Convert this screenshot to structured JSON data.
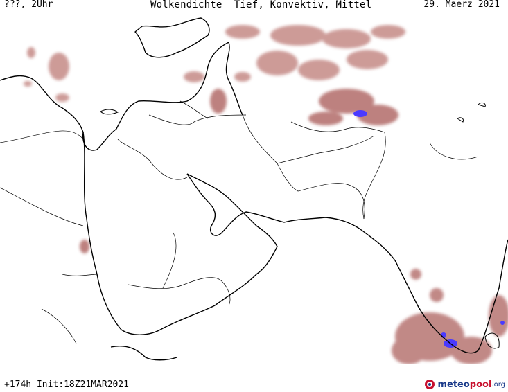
{
  "header": {
    "left": "???, 2Uhr",
    "title": "Wolkendichte  Tief, Konvektiv, Mittel",
    "date": "29. Maerz 2021"
  },
  "footer": {
    "run": "+174h Init:18Z21MAR2021"
  },
  "brand": {
    "part1": "meteo",
    "part2": "pool",
    "part3": ".org"
  },
  "colors": {
    "cloud_light": "#e8c4c0",
    "cloud_medium": "#c07070",
    "cloud_dark": "#8a3a3a",
    "cloud_max": "#3a2aff",
    "coastline": "#000000",
    "border": "#000000"
  }
}
